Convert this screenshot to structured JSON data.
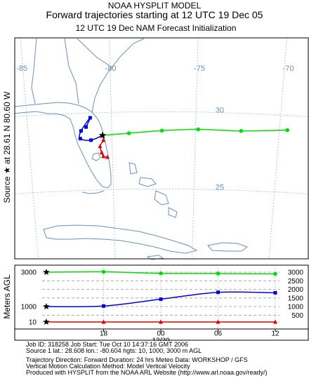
{
  "title": {
    "line1": "NOAA HYSPLIT MODEL",
    "line2": "Forward trajectories starting at 12 UTC 19 Dec 05",
    "line3": "12 UTC 19 Dec      NAM  Forecast Initialization"
  },
  "side_label": "Source ★ at   28.61 N   80.60 W",
  "profile_ylabel": "Meters AGL",
  "info_lines": [
    "Job ID: 318258            Job Start: Tue Oct 10 14:37:16 GMT 2006",
    "Source 1 lat.: 28.608  lon.: -80.604  hgts: 10, 1000, 3000 m AGL",
    "",
    "Trajectory Direction: Forward    Duration: 24 hrs    Meteo Data: WORKSHOP / GFS",
    "Vertical Motion Calculation Method: Model Vertical Velocity",
    "Produced with HYSPLIT from the NOAA ARL Website (http://www.arl.noaa.gov/ready/)"
  ],
  "colors": {
    "red": "#e00000",
    "blue": "#0000e0",
    "green": "#00e000",
    "coast": "#6c8fbf"
  },
  "chart_data": [
    {
      "type": "map-trajectory",
      "lon_labels": [
        "-85",
        "-80",
        "-75",
        "-70"
      ],
      "lat_labels": [
        "30",
        "25"
      ],
      "source": {
        "lat": 28.61,
        "lon": -80.6
      },
      "series": [
        {
          "name": "10 m AGL",
          "color": "red",
          "marker": "triangle",
          "points": [
            [
              -80.6,
              28.61
            ],
            [
              -80.55,
              28.3
            ],
            [
              -80.75,
              27.9
            ],
            [
              -80.65,
              27.5
            ],
            [
              -80.55,
              27.25
            ],
            [
              -80.3,
              27.2
            ]
          ]
        },
        {
          "name": "1000 m AGL",
          "color": "blue",
          "marker": "square",
          "points": [
            [
              -80.6,
              28.61
            ],
            [
              -81.3,
              28.3
            ],
            [
              -81.95,
              28.4
            ],
            [
              -81.9,
              28.9
            ],
            [
              -81.35,
              29.75
            ],
            [
              -81.6,
              29.15
            ]
          ]
        },
        {
          "name": "3000 m AGL",
          "color": "green",
          "marker": "circle",
          "points": [
            [
              -80.6,
              28.61
            ],
            [
              -79.0,
              28.75
            ],
            [
              -77.0,
              28.92
            ],
            [
              -74.8,
              29.0
            ],
            [
              -72.2,
              28.9
            ],
            [
              -69.4,
              28.95
            ]
          ]
        }
      ]
    },
    {
      "type": "line",
      "x_labels": [
        "18",
        "00",
        "06",
        "12"
      ],
      "x_sublabel": "12/20",
      "x_hours": [
        0,
        24
      ],
      "y_left_labels": [
        "3000",
        "1000",
        "10"
      ],
      "y_right_labels": [
        "3000",
        "2500",
        "2000",
        "1500",
        "1000",
        "500"
      ],
      "series": [
        {
          "name": "3000 m",
          "color": "green",
          "marker": "circle",
          "x": [
            0,
            6,
            12,
            18,
            24
          ],
          "y": [
            3000,
            3020,
            2930,
            2920,
            2900
          ]
        },
        {
          "name": "1000 m",
          "color": "blue",
          "marker": "square",
          "x": [
            0,
            6,
            12,
            18,
            24
          ],
          "y": [
            1000,
            1030,
            1430,
            1830,
            1800
          ]
        },
        {
          "name": "10 m",
          "color": "red",
          "marker": "triangle",
          "x": [
            0,
            6,
            12,
            18,
            24
          ],
          "y": [
            10,
            10,
            10,
            10,
            10
          ]
        }
      ]
    }
  ]
}
